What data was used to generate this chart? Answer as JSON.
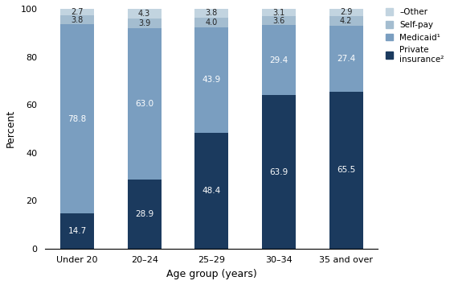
{
  "categories": [
    "Under 20",
    "20–24",
    "25–29",
    "30–34",
    "35 and over"
  ],
  "private_insurance": [
    14.7,
    28.9,
    48.4,
    63.9,
    65.5
  ],
  "medicaid": [
    78.8,
    63.0,
    43.9,
    29.4,
    27.4
  ],
  "selfpay": [
    3.8,
    3.9,
    4.0,
    3.6,
    4.2
  ],
  "other": [
    2.7,
    4.3,
    3.8,
    3.1,
    2.9
  ],
  "color_private": "#1b3a5e",
  "color_medicaid": "#7a9ec0",
  "color_selfpay": "#a4bdd0",
  "color_other": "#c2d4e0",
  "ylabel": "Percent",
  "xlabel": "Age group (years)",
  "ylim": [
    0,
    100
  ],
  "yticks": [
    0,
    20,
    40,
    60,
    80,
    100
  ],
  "bar_width": 0.5,
  "figsize": [
    5.6,
    3.54
  ],
  "dpi": 100
}
